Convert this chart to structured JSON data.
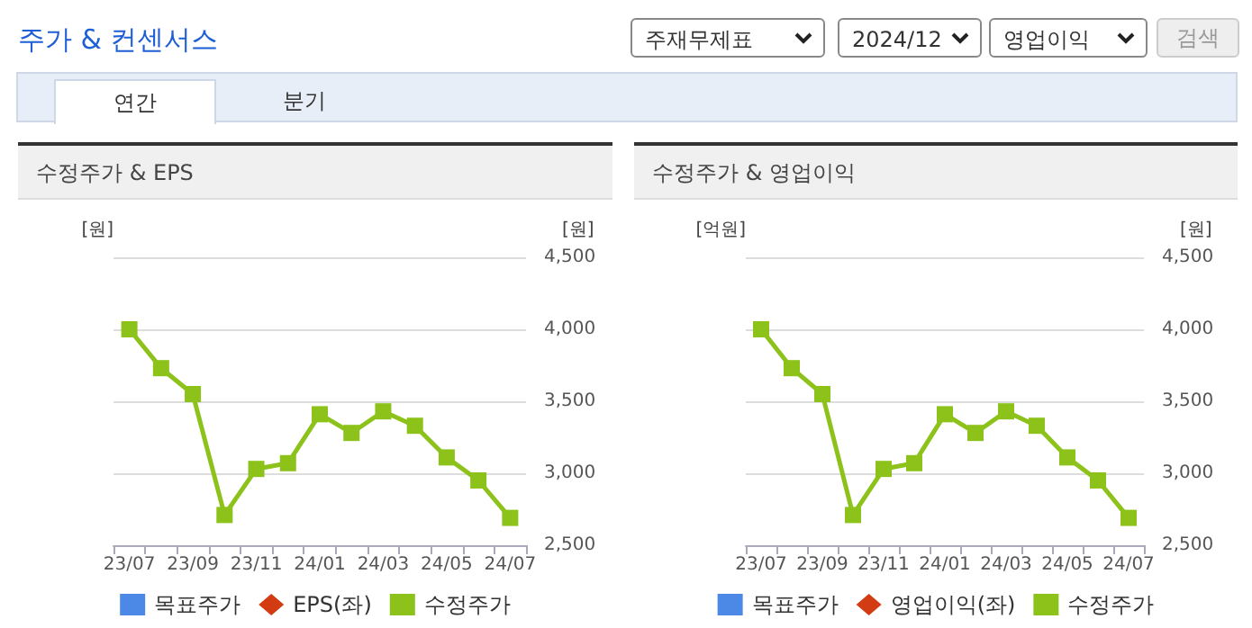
{
  "chart_data": [
    {
      "type": "other",
      "title": "주가 & 컨센서스",
      "annotations": [
        "주재무제표",
        "2024/12",
        "영업이익",
        "검색",
        "연간",
        "분기"
      ]
    },
    {
      "type": "line",
      "title": "수정주가 & EPS",
      "ylabel": "[원]",
      "y2label": "[원]",
      "categories": [
        "23/07",
        null,
        "23/09",
        null,
        "23/11",
        null,
        "24/01",
        null,
        "24/03",
        null,
        "24/05",
        null,
        "24/07"
      ],
      "series": [
        {
          "name": "목표주가",
          "type": "scatter",
          "marker": "square",
          "color": "#1f6ae0",
          "axis": "y2",
          "values": [
            null,
            null,
            null,
            null,
            null,
            null,
            null,
            null,
            null,
            null,
            null,
            null,
            null
          ]
        },
        {
          "name": "EPS(좌)",
          "type": "line",
          "marker": "diamond",
          "color": "#d33b12",
          "axis": "y",
          "values": [
            null,
            null,
            null,
            null,
            null,
            null,
            null,
            null,
            null,
            null,
            null,
            null,
            null
          ]
        },
        {
          "name": "수정주가",
          "type": "line",
          "marker": "square",
          "color": "#8cc21a",
          "axis": "y2",
          "values": [
            4000,
            3730,
            3550,
            2710,
            3030,
            3070,
            3410,
            3280,
            3430,
            3330,
            3110,
            2950,
            2690
          ]
        }
      ],
      "y2lim": [
        2500,
        4500
      ],
      "y2ticks": [
        {
          "value": 2500,
          "label": "2,500"
        },
        {
          "value": 3000,
          "label": "3,000"
        },
        {
          "value": 3500,
          "label": "3,500"
        },
        {
          "value": 4000,
          "label": "4,000"
        },
        {
          "value": 4500,
          "label": "4,500"
        }
      ],
      "grid": "y",
      "legend": "bottom",
      "line_style": "solid"
    },
    {
      "type": "line",
      "title": "수정주가 & 영업이익",
      "ylabel": "[억원]",
      "y2label": "[원]",
      "categories": [
        "23/07",
        null,
        "23/09",
        null,
        "23/11",
        null,
        "24/01",
        null,
        "24/03",
        null,
        "24/05",
        null,
        "24/07"
      ],
      "series": [
        {
          "name": "목표주가",
          "type": "scatter",
          "marker": "square",
          "color": "#1f6ae0",
          "axis": "y2",
          "values": [
            null,
            null,
            null,
            null,
            null,
            null,
            null,
            null,
            null,
            null,
            null,
            null,
            null
          ]
        },
        {
          "name": "영업이익(좌)",
          "type": "line",
          "marker": "diamond",
          "color": "#d33b12",
          "axis": "y",
          "values": [
            null,
            null,
            null,
            null,
            null,
            null,
            null,
            null,
            null,
            null,
            null,
            null,
            null
          ]
        },
        {
          "name": "수정주가",
          "type": "line",
          "marker": "square",
          "color": "#8cc21a",
          "axis": "y2",
          "values": [
            4000,
            3730,
            3550,
            2710,
            3030,
            3070,
            3410,
            3280,
            3430,
            3330,
            3110,
            2950,
            2690
          ]
        }
      ],
      "y2lim": [
        2500,
        4500
      ],
      "y2ticks": [
        {
          "value": 2500,
          "label": "2,500"
        },
        {
          "value": 3000,
          "label": "3,000"
        },
        {
          "value": 3500,
          "label": "3,500"
        },
        {
          "value": 4000,
          "label": "4,000"
        },
        {
          "value": 4500,
          "label": "4,500"
        }
      ],
      "grid": "y",
      "legend": "bottom",
      "line_style": "solid"
    }
  ]
}
